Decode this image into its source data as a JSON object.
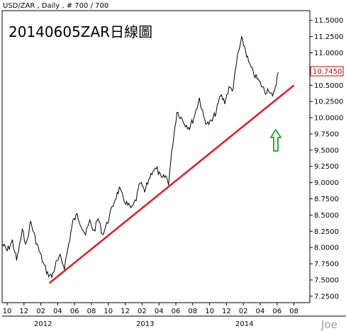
{
  "header": "USD/ZAR , Daily , # 700 / 700",
  "title": "20140605ZAR日線圖",
  "watermark": "Joe",
  "colors": {
    "price": "#000000",
    "trendline": "#e21b23",
    "arrow": "#2eac3a",
    "last_box": "#cc0000"
  },
  "chart_data": {
    "type": "line",
    "series": [
      {
        "values": [
          [
            "2011-09-15",
            8.05
          ],
          [
            "2011-10-01",
            7.95
          ],
          [
            "2011-10-20",
            8.1
          ],
          [
            "2011-11-05",
            7.8
          ],
          [
            "2011-11-25",
            8.25
          ],
          [
            "2011-12-10",
            8.05
          ],
          [
            "2011-12-25",
            8.4
          ],
          [
            "2012-01-10",
            8.15
          ],
          [
            "2012-01-25",
            7.95
          ],
          [
            "2012-02-10",
            7.75
          ],
          [
            "2012-02-25",
            7.6
          ],
          [
            "2012-03-10",
            7.55
          ],
          [
            "2012-03-25",
            7.75
          ],
          [
            "2012-04-10",
            7.85
          ],
          [
            "2012-04-25",
            7.7
          ],
          [
            "2012-05-10",
            8.05
          ],
          [
            "2012-05-25",
            8.4
          ],
          [
            "2012-06-10",
            8.5
          ],
          [
            "2012-06-25",
            8.35
          ],
          [
            "2012-07-10",
            8.2
          ],
          [
            "2012-07-25",
            8.4
          ],
          [
            "2012-08-10",
            8.25
          ],
          [
            "2012-08-25",
            8.45
          ],
          [
            "2012-09-10",
            8.2
          ],
          [
            "2012-09-25",
            8.35
          ],
          [
            "2012-10-10",
            8.55
          ],
          [
            "2012-10-25",
            8.75
          ],
          [
            "2012-11-10",
            8.9
          ],
          [
            "2012-11-25",
            8.75
          ],
          [
            "2012-12-10",
            8.65
          ],
          [
            "2012-12-25",
            8.6
          ],
          [
            "2013-01-10",
            8.75
          ],
          [
            "2013-01-25",
            9.0
          ],
          [
            "2013-02-10",
            8.85
          ],
          [
            "2013-02-25",
            9.05
          ],
          [
            "2013-03-10",
            9.2
          ],
          [
            "2013-03-25",
            9.2
          ],
          [
            "2013-04-10",
            9.05
          ],
          [
            "2013-04-25",
            9.1
          ],
          [
            "2013-05-05",
            9.0
          ],
          [
            "2013-05-20",
            9.6
          ],
          [
            "2013-06-05",
            10.1
          ],
          [
            "2013-06-20",
            10.0
          ],
          [
            "2013-07-05",
            9.9
          ],
          [
            "2013-07-20",
            9.85
          ],
          [
            "2013-08-05",
            10.0
          ],
          [
            "2013-08-25",
            10.3
          ],
          [
            "2013-09-10",
            10.0
          ],
          [
            "2013-09-25",
            9.9
          ],
          [
            "2013-10-10",
            9.95
          ],
          [
            "2013-10-25",
            10.1
          ],
          [
            "2013-11-10",
            10.35
          ],
          [
            "2013-11-25",
            10.25
          ],
          [
            "2013-12-10",
            10.45
          ],
          [
            "2013-12-25",
            10.45
          ],
          [
            "2014-01-10",
            10.95
          ],
          [
            "2014-01-25",
            11.2
          ],
          [
            "2014-02-05",
            11.1
          ],
          [
            "2014-02-20",
            10.85
          ],
          [
            "2014-03-05",
            10.7
          ],
          [
            "2014-03-20",
            10.6
          ],
          [
            "2014-04-05",
            10.5
          ],
          [
            "2014-04-20",
            10.4
          ],
          [
            "2014-05-01",
            10.45
          ],
          [
            "2014-05-15",
            10.3
          ],
          [
            "2014-05-28",
            10.55
          ],
          [
            "2014-06-05",
            10.7
          ]
        ]
      },
      {
        "values": [
          [
            "2012-03-01",
            7.45
          ],
          [
            "2014-08-01",
            10.5
          ]
        ]
      }
    ],
    "last_value": "10.7450",
    "ylim": [
      7.15,
      11.65
    ],
    "y_ticks": [
      "7.2500",
      "7.5000",
      "7.7500",
      "8.0000",
      "8.2500",
      "8.5000",
      "8.7500",
      "9.0000",
      "9.2500",
      "9.5000",
      "9.7500",
      "10.0000",
      "10.2500",
      "10.5000",
      "10.7500",
      "11.0000",
      "11.2500",
      "11.5000"
    ],
    "x_ticks": [
      "10",
      "12",
      "02",
      "04",
      "06",
      "08",
      "10",
      "12",
      "02",
      "04",
      "06",
      "08",
      "10",
      "12",
      "02",
      "04",
      "06",
      "08"
    ],
    "x_years": [
      "2012",
      "2013",
      "2014"
    ],
    "annotation": "green up arrow under the 2014-06 dip",
    "grid": false
  }
}
